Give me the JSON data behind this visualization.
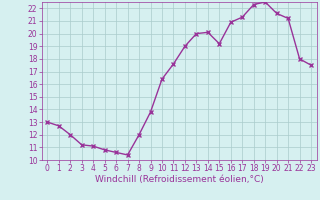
{
  "x": [
    0,
    1,
    2,
    3,
    4,
    5,
    6,
    7,
    8,
    9,
    10,
    11,
    12,
    13,
    14,
    15,
    16,
    17,
    18,
    19,
    20,
    21,
    22,
    23
  ],
  "y": [
    13.0,
    12.7,
    12.0,
    11.2,
    11.1,
    10.8,
    10.6,
    10.4,
    12.0,
    13.8,
    16.4,
    17.6,
    19.0,
    20.0,
    20.1,
    19.2,
    20.9,
    21.3,
    22.3,
    22.5,
    21.6,
    21.2,
    18.0,
    17.5
  ],
  "line_color": "#993399",
  "marker": "x",
  "marker_color": "#993399",
  "bg_color": "#d6f0f0",
  "grid_color": "#aacccc",
  "xlabel": "Windchill (Refroidissement éolien,°C)",
  "xlabel_color": "#993399",
  "tick_color": "#993399",
  "ylim": [
    10,
    22.5
  ],
  "xlim": [
    -0.5,
    23.5
  ],
  "yticks": [
    10,
    11,
    12,
    13,
    14,
    15,
    16,
    17,
    18,
    19,
    20,
    21,
    22
  ],
  "xticks": [
    0,
    1,
    2,
    3,
    4,
    5,
    6,
    7,
    8,
    9,
    10,
    11,
    12,
    13,
    14,
    15,
    16,
    17,
    18,
    19,
    20,
    21,
    22,
    23
  ],
  "xlabel_fontsize": 6.5,
  "tick_fontsize": 5.5,
  "linewidth": 1.0,
  "markersize": 3
}
